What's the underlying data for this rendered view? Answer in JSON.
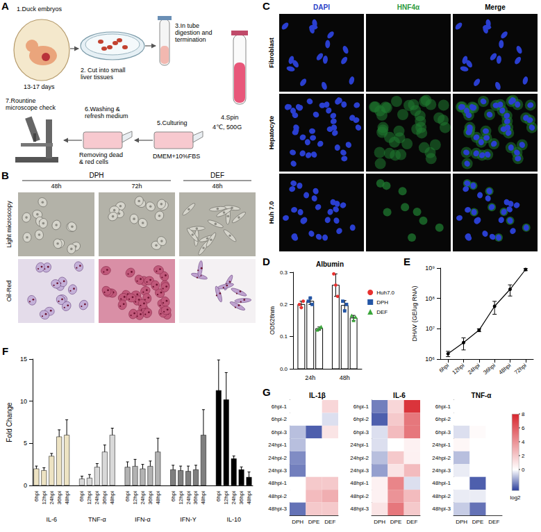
{
  "chart_data": [
    {
      "panel": "D",
      "type": "bar",
      "title": "Albumin",
      "y_label": "OD528nm",
      "categories": [
        "24h",
        "48h"
      ],
      "series": [
        {
          "name": "Huh7.0",
          "color": "#e8312f",
          "marker": "circle",
          "values": [
            0.2,
            0.26
          ],
          "errors": [
            0.01,
            0.035
          ],
          "points": [
            [
              0.2,
              0.19,
              0.21
            ],
            [
              0.295,
              0.26,
              0.225
            ]
          ]
        },
        {
          "name": "DPH",
          "color": "#2456a6",
          "marker": "square",
          "values": [
            0.21,
            0.197
          ],
          "errors": [
            0.01,
            0.015
          ],
          "points": [
            [
              0.21,
              0.22,
              0.2
            ],
            [
              0.21,
              0.18,
              0.2
            ]
          ]
        },
        {
          "name": "DEF",
          "color": "#3aa63a",
          "marker": "triangle",
          "values": [
            0.125,
            0.158
          ],
          "errors": [
            0.005,
            0.008
          ],
          "points": [
            [
              0.12,
              0.125,
              0.13
            ],
            [
              0.165,
              0.15,
              0.16
            ]
          ]
        }
      ],
      "ylim": [
        0,
        0.3
      ],
      "yticks": [
        {
          "value": 0,
          "label": "0.0"
        },
        0.1,
        0.2,
        0.3
      ],
      "legend": "right"
    },
    {
      "panel": "E",
      "type": "line",
      "y_label": "DHAV (GE/ug RNA)",
      "categories": [
        "6hpi",
        "12hpi",
        "24hpi",
        "36hpi",
        "48hpi",
        "72hpi"
      ],
      "values": [
        1500000,
        3500000,
        9000000,
        55000000,
        200000000,
        900000000
      ],
      "errors": [
        300000,
        1500000,
        1000000,
        25000000,
        80000000,
        80000000
      ],
      "color": "#000000",
      "marker": "circle",
      "log": "y",
      "ylim": [
        1000000,
        1000000000
      ],
      "yticks": [
        {
          "value": 1000000,
          "label": "10⁶"
        },
        {
          "value": 10000000,
          "label": "10⁷"
        },
        {
          "value": 100000000,
          "label": "10⁸"
        },
        {
          "value": 1000000000,
          "label": "10⁹"
        }
      ]
    },
    {
      "panel": "F",
      "type": "bar",
      "y_label": "Fold Change",
      "categories": [
        "6hpi",
        "12hpi",
        "24hpi",
        "36hpi",
        "48hpi"
      ],
      "series": [
        {
          "name": "IL-6",
          "color": "#ede3c3",
          "values": [
            2.0,
            1.8,
            3.5,
            5.8,
            6.0
          ],
          "errors": [
            0.3,
            0.3,
            0.3,
            0.8,
            1.8
          ]
        },
        {
          "name": "TNF-α",
          "color": "#d9d9d9",
          "values": [
            0.8,
            0.9,
            2.2,
            4.0,
            6.0
          ],
          "errors": [
            0.3,
            0.4,
            0.4,
            0.8,
            0.8
          ]
        },
        {
          "name": "IFN-α",
          "color": "#b3b3b3",
          "values": [
            2.2,
            2.3,
            2.0,
            2.3,
            4.0
          ],
          "errors": [
            0.6,
            0.8,
            0.5,
            0.6,
            1.6
          ]
        },
        {
          "name": "IFN-Y",
          "color": "#7f7f7f",
          "values": [
            1.9,
            1.8,
            1.7,
            1.9,
            6.0
          ],
          "errors": [
            0.5,
            0.5,
            0.6,
            0.5,
            3.0
          ]
        },
        {
          "name": "IL-10",
          "color": "#000000",
          "values": [
            11.3,
            10.2,
            3.2,
            1.9,
            1.0
          ],
          "errors": [
            3.6,
            3.2,
            0.3,
            0.3,
            0.6
          ]
        }
      ],
      "ylim": [
        0,
        15
      ],
      "yticks": [
        0,
        5,
        10,
        15
      ]
    },
    {
      "panel": "G",
      "type": "heatmap",
      "rows": [
        "6hpi-1",
        "6hpi-2",
        "6hpi-3",
        "24hpi-1",
        "24hpi-2",
        "24hpi-3",
        "48hpi-1",
        "48hpi-2",
        "48hpi-3"
      ],
      "columns": [
        "DPH",
        "DPE",
        "DEF"
      ],
      "maps": [
        {
          "title": "IL-1β",
          "values": [
            [
              0,
              0,
              1.5
            ],
            [
              0,
              0,
              -0.5
            ],
            [
              -1,
              -2.5,
              1
            ],
            [
              -1,
              0,
              0
            ],
            [
              -1.8,
              0,
              0
            ],
            [
              -2,
              0,
              0
            ],
            [
              0,
              2,
              2
            ],
            [
              0,
              2.5,
              3
            ],
            [
              -2.2,
              2,
              2
            ]
          ]
        },
        {
          "title": "IL-6",
          "values": [
            [
              -2,
              1.5,
              7.5
            ],
            [
              -2.5,
              2,
              5
            ],
            [
              -0.5,
              2.5,
              5
            ],
            [
              -0.5,
              0,
              0.5
            ],
            [
              -1,
              2,
              0.5
            ],
            [
              -1.5,
              1,
              2.5
            ],
            [
              0.5,
              4.5,
              -0.5
            ],
            [
              0.5,
              4,
              2.5
            ],
            [
              1,
              5,
              2
            ]
          ]
        },
        {
          "title": "TNF-α",
          "values": [
            [
              0,
              0,
              0
            ],
            [
              0,
              0,
              0
            ],
            [
              -0.5,
              0.2,
              0
            ],
            [
              0.3,
              0,
              0
            ],
            [
              -1,
              0,
              0
            ],
            [
              -0.3,
              0,
              0
            ],
            [
              0,
              -2.5,
              0
            ],
            [
              -0.3,
              -0.3,
              0
            ],
            [
              -0.8,
              -2.2,
              0
            ]
          ]
        }
      ],
      "colorbar": {
        "range": [
          -3,
          8
        ],
        "ticks": [
          0,
          2,
          4,
          6,
          8
        ],
        "label": "log2",
        "colors": [
          "#2b3f9c",
          "#ffffff",
          "#d7262e"
        ]
      }
    }
  ],
  "panels": {
    "A": {
      "letter": "A",
      "steps": [
        {
          "label": "1.Duck embryos",
          "note": "13-17 days"
        },
        {
          "label": "2. Cut into small liver tissues"
        },
        {
          "label": "3.In tube digestion and termination"
        },
        {
          "label": "4.Spin",
          "note": "4℃, 500G"
        },
        {
          "label": "5.Culturing",
          "note": "DMEM+10%FBS"
        },
        {
          "label": "6.Washing & refresh medium",
          "note": "Removing dead & red cells"
        },
        {
          "label": "7.Rountine microscope check"
        }
      ]
    },
    "B": {
      "letter": "B",
      "groups": [
        {
          "label": "DPH",
          "columns": [
            "48h",
            "72h"
          ]
        },
        {
          "label": "DEF",
          "columns": [
            "48h"
          ]
        }
      ],
      "rows": [
        "Light microscopy",
        "Oil-Red"
      ]
    },
    "C": {
      "letter": "C",
      "columns": [
        "DAPI",
        "HNF4α",
        "Merge"
      ],
      "rows": [
        "Fibroblast",
        "Hepatocyte",
        "Huh 7.0"
      ]
    }
  }
}
